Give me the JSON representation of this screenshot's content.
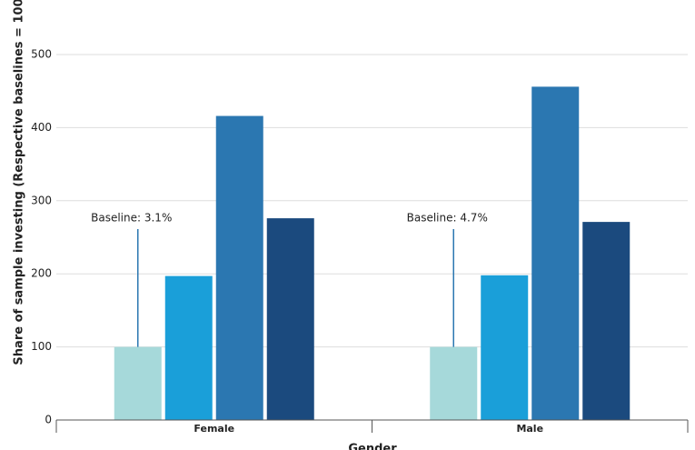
{
  "chart_data": {
    "type": "bar",
    "x_label": "Gender",
    "y_label": "Share of sample investing (Respective baselines = 100)",
    "categories": [
      "Female",
      "Male"
    ],
    "series": [
      {
        "color": "#a6d9da",
        "values": [
          100,
          100
        ]
      },
      {
        "color": "#1a9fd9",
        "values": [
          197,
          198
        ]
      },
      {
        "color": "#2b77b1",
        "values": [
          416,
          456
        ]
      },
      {
        "color": "#1b4a7e",
        "values": [
          276,
          271
        ]
      }
    ],
    "annotations": [
      "Baseline: 3.1%",
      "Baseline: 4.7%"
    ],
    "ylim": [
      0,
      500
    ],
    "yticks": [
      0,
      100,
      200,
      300,
      400,
      500
    ],
    "grid": true
  }
}
